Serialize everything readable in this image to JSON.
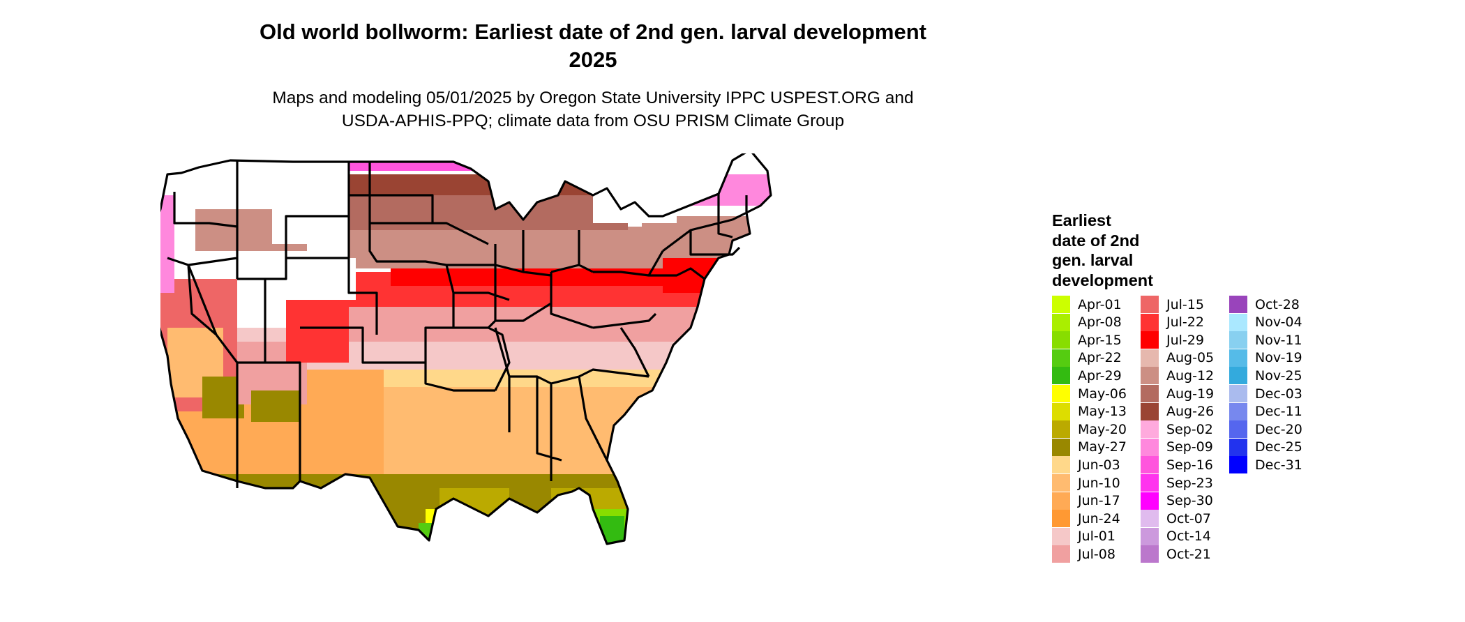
{
  "title": {
    "line1": "Old world bollworm: Earliest date of 2nd gen. larval development",
    "line2": "2025"
  },
  "subtitle": {
    "line1": "Maps and modeling 05/01/2025 by Oregon State University IPPC USPEST.ORG and",
    "line2": "USDA-APHIS-PPQ; climate data from OSU PRISM Climate Group"
  },
  "map": {
    "region": "Contiguous United States",
    "state_boundary_color": "#000000",
    "no_development_color": "#ffffff"
  },
  "legend": {
    "title_lines": [
      "Earliest",
      "date of 2nd",
      "gen. larval",
      "development"
    ],
    "items": [
      {
        "label": "Apr-01",
        "color": "#ccff00"
      },
      {
        "label": "Apr-08",
        "color": "#aaee00"
      },
      {
        "label": "Apr-15",
        "color": "#88dd00"
      },
      {
        "label": "Apr-22",
        "color": "#55cc11"
      },
      {
        "label": "Apr-29",
        "color": "#33bb11"
      },
      {
        "label": "May-06",
        "color": "#ffff00"
      },
      {
        "label": "May-13",
        "color": "#dddd00"
      },
      {
        "label": "May-20",
        "color": "#bbaa00"
      },
      {
        "label": "May-27",
        "color": "#998800"
      },
      {
        "label": "Jun-03",
        "color": "#ffd88a"
      },
      {
        "label": "Jun-10",
        "color": "#ffbb70"
      },
      {
        "label": "Jun-17",
        "color": "#ffaa55"
      },
      {
        "label": "Jun-24",
        "color": "#ff9933"
      },
      {
        "label": "Jul-01",
        "color": "#f5c8c8"
      },
      {
        "label": "Jul-08",
        "color": "#f0a0a0"
      },
      {
        "label": "Jul-15",
        "color": "#ee6666"
      },
      {
        "label": "Jul-22",
        "color": "#ff3333"
      },
      {
        "label": "Jul-29",
        "color": "#ff0000"
      },
      {
        "label": "Aug-05",
        "color": "#e6b8ae"
      },
      {
        "label": "Aug-12",
        "color": "#cc8f84"
      },
      {
        "label": "Aug-19",
        "color": "#b36b60"
      },
      {
        "label": "Aug-26",
        "color": "#9a4433"
      },
      {
        "label": "Sep-02",
        "color": "#ffaadd"
      },
      {
        "label": "Sep-09",
        "color": "#ff88dd"
      },
      {
        "label": "Sep-16",
        "color": "#ff55dd"
      },
      {
        "label": "Sep-23",
        "color": "#ff33ee"
      },
      {
        "label": "Sep-30",
        "color": "#ff00ff"
      },
      {
        "label": "Oct-07",
        "color": "#e0bbee"
      },
      {
        "label": "Oct-14",
        "color": "#cc99dd"
      },
      {
        "label": "Oct-21",
        "color": "#bb77cc"
      },
      {
        "label": "Oct-28",
        "color": "#9944bb"
      },
      {
        "label": "Nov-04",
        "color": "#aae8ff"
      },
      {
        "label": "Nov-11",
        "color": "#88d0f0"
      },
      {
        "label": "Nov-19",
        "color": "#55bbe8"
      },
      {
        "label": "Nov-25",
        "color": "#33aadd"
      },
      {
        "label": "Dec-03",
        "color": "#aabbee"
      },
      {
        "label": "Dec-11",
        "color": "#7788ee"
      },
      {
        "label": "Dec-20",
        "color": "#5566ee"
      },
      {
        "label": "Dec-25",
        "color": "#2233ee"
      },
      {
        "label": "Dec-31",
        "color": "#0000ff"
      }
    ]
  }
}
